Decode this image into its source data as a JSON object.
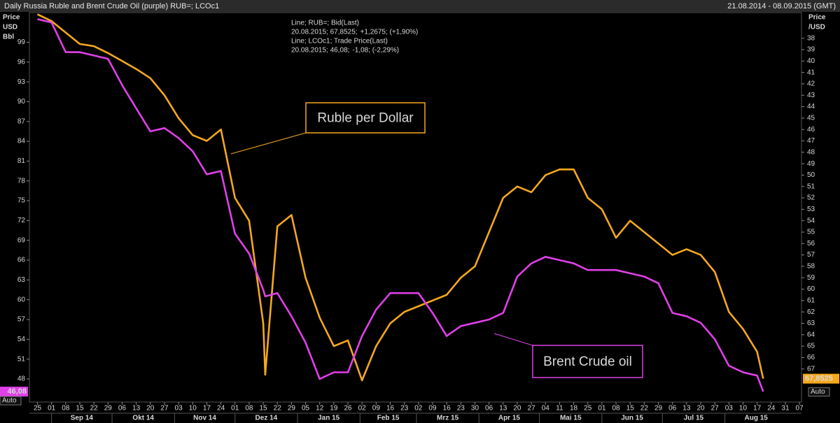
{
  "chart_data": {
    "type": "line",
    "title": "Daily Russia Ruble and Brent Crude Oil (purple) RUB=; LCOc1",
    "date_range": "21.08.2014 - 08.09.2015 (GMT)",
    "y_label": [
      "Price",
      "USD",
      "Bbl"
    ],
    "y2_label": [
      "Price",
      "/USD"
    ],
    "auto_button": "Auto",
    "x": [
      "2014-08-25",
      "2014-09-01",
      "2014-09-08",
      "2014-09-15",
      "2014-09-22",
      "2014-09-29",
      "2014-10-06",
      "2014-10-13",
      "2014-10-20",
      "2014-10-27",
      "2014-11-03",
      "2014-11-10",
      "2014-11-17",
      "2014-11-24",
      "2014-12-01",
      "2014-12-08",
      "2014-12-15",
      "2014-12-16",
      "2014-12-22",
      "2014-12-29",
      "2015-01-05",
      "2015-01-12",
      "2015-01-19",
      "2015-01-26",
      "2015-02-02",
      "2015-02-09",
      "2015-02-16",
      "2015-02-23",
      "2015-03-02",
      "2015-03-09",
      "2015-03-16",
      "2015-03-23",
      "2015-03-30",
      "2015-04-06",
      "2015-04-13",
      "2015-04-20",
      "2015-04-27",
      "2015-05-04",
      "2015-05-11",
      "2015-05-18",
      "2015-05-25",
      "2015-06-01",
      "2015-06-08",
      "2015-06-15",
      "2015-06-22",
      "2015-06-29",
      "2015-07-06",
      "2015-07-13",
      "2015-07-20",
      "2015-07-27",
      "2015-08-03",
      "2015-08-10",
      "2015-08-17",
      "2015-08-20"
    ],
    "series": [
      {
        "name": "Line; RUB=; Bid(Last)",
        "color": "#f5a81c",
        "axis": "y2",
        "status": [
          {
            "text": "20.08.2015; 67,8525;",
            "color": "#f5a81c"
          },
          {
            "text": "+1,2675; (+1,90%)",
            "color": "#3fd6e6"
          }
        ],
        "values": [
          35.9,
          36.5,
          37.5,
          38.5,
          38.7,
          39.3,
          40,
          40.7,
          41.5,
          43,
          45,
          46.5,
          47,
          46,
          52,
          54,
          63,
          67.5,
          54.5,
          53.5,
          59,
          62.5,
          65,
          64.5,
          68,
          65,
          63,
          62,
          61.5,
          61,
          60.5,
          59,
          58,
          55,
          52,
          51,
          51.5,
          50,
          49.5,
          49.5,
          52,
          53,
          55.5,
          54,
          55,
          56,
          57,
          56.5,
          57,
          58.5,
          62,
          63.5,
          65.5,
          67.8525
        ],
        "value_labels": [
          null,
          null,
          null,
          null,
          null,
          null,
          null,
          null,
          null,
          null,
          null,
          null,
          null,
          null,
          null,
          null,
          null,
          null,
          null,
          null,
          null,
          null,
          null,
          null,
          null,
          null,
          null,
          null,
          null,
          null,
          null,
          null,
          null,
          null,
          null,
          null,
          null,
          null,
          null,
          null,
          null,
          null,
          null,
          null,
          null,
          null,
          null,
          null,
          null,
          null,
          null,
          null,
          null,
          "67,8525"
        ]
      },
      {
        "name": "Line; LCOc1; Trade Price(Last)",
        "color": "#e040e8",
        "status": [
          {
            "text": "20.08.2015; 46,08;",
            "color": "#e040e8"
          },
          {
            "text": "-1,08; (-2,29%)",
            "color": "#ff3030"
          }
        ],
        "values": [
          102.5,
          102,
          97.5,
          97.5,
          97,
          96.5,
          92.5,
          89,
          85.5,
          86,
          84.5,
          82.5,
          79,
          79.5,
          70,
          67,
          61.5,
          60.5,
          61,
          57.5,
          53.5,
          48,
          49,
          49,
          54.5,
          58.5,
          61,
          61,
          61,
          58,
          54.5,
          56,
          56.5,
          57,
          58,
          63.5,
          65.5,
          66.5,
          66,
          65.5,
          64.5,
          64.5,
          64.5,
          64,
          63.5,
          62.5,
          58,
          57.5,
          56.5,
          54,
          50,
          49,
          48.5,
          46.08
        ],
        "value_labels": [
          null,
          null,
          null,
          null,
          null,
          null,
          null,
          null,
          null,
          null,
          null,
          null,
          null,
          null,
          null,
          null,
          null,
          null,
          null,
          null,
          null,
          null,
          null,
          null,
          null,
          null,
          null,
          null,
          null,
          null,
          null,
          null,
          null,
          null,
          null,
          null,
          null,
          null,
          null,
          null,
          null,
          null,
          null,
          null,
          null,
          null,
          null,
          null,
          null,
          null,
          null,
          null,
          null,
          "46,08"
        ]
      }
    ],
    "annotations": [
      {
        "text": "Ruble per Dollar",
        "series": 0
      },
      {
        "text": "Brent Crude oil",
        "series": 1
      }
    ],
    "xlim": [
      "2014-08-21",
      "2015-09-08"
    ],
    "ylim": [
      44.5,
      103.5
    ],
    "yticks": [
      48,
      51,
      54,
      57,
      60,
      63,
      66,
      69,
      72,
      75,
      78,
      81,
      84,
      87,
      90,
      93,
      96,
      99
    ],
    "y2lim": [
      69.9,
      35.75
    ],
    "y2ticks": [
      38,
      39,
      40,
      41,
      42,
      43,
      44,
      45,
      46,
      47,
      48,
      49,
      50,
      51,
      52,
      53,
      54,
      55,
      56,
      57,
      58,
      59,
      60,
      61,
      62,
      63,
      64,
      65,
      66,
      67
    ],
    "xticks": [
      {
        "value": "2014-08-25",
        "label": "25"
      },
      {
        "value": "2014-09-01",
        "label": "01"
      },
      {
        "value": "2014-09-08",
        "label": "08"
      },
      {
        "value": "2014-09-15",
        "label": "15"
      },
      {
        "value": "2014-09-22",
        "label": "22"
      },
      {
        "value": "2014-09-29",
        "label": "29"
      },
      {
        "value": "2014-10-06",
        "label": "06"
      },
      {
        "value": "2014-10-13",
        "label": "13"
      },
      {
        "value": "2014-10-20",
        "label": "20"
      },
      {
        "value": "2014-10-27",
        "label": "27"
      },
      {
        "value": "2014-11-03",
        "label": "03"
      },
      {
        "value": "2014-11-10",
        "label": "10"
      },
      {
        "value": "2014-11-17",
        "label": "17"
      },
      {
        "value": "2014-11-24",
        "label": "24"
      },
      {
        "value": "2014-12-01",
        "label": "01"
      },
      {
        "value": "2014-12-08",
        "label": "08"
      },
      {
        "value": "2014-12-15",
        "label": "15"
      },
      {
        "value": "2014-12-22",
        "label": "22"
      },
      {
        "value": "2014-12-29",
        "label": "29"
      },
      {
        "value": "2015-01-05",
        "label": "05"
      },
      {
        "value": "2015-01-12",
        "label": "12"
      },
      {
        "value": "2015-01-19",
        "label": "19"
      },
      {
        "value": "2015-01-26",
        "label": "26"
      },
      {
        "value": "2015-02-02",
        "label": "02"
      },
      {
        "value": "2015-02-09",
        "label": "09"
      },
      {
        "value": "2015-02-16",
        "label": "16"
      },
      {
        "value": "2015-02-23",
        "label": "23"
      },
      {
        "value": "2015-03-02",
        "label": "02"
      },
      {
        "value": "2015-03-09",
        "label": "09"
      },
      {
        "value": "2015-03-16",
        "label": "16"
      },
      {
        "value": "2015-03-23",
        "label": "23"
      },
      {
        "value": "2015-03-30",
        "label": "30"
      },
      {
        "value": "2015-04-06",
        "label": "06"
      },
      {
        "value": "2015-04-13",
        "label": "13"
      },
      {
        "value": "2015-04-20",
        "label": "20"
      },
      {
        "value": "2015-04-27",
        "label": "27"
      },
      {
        "value": "2015-05-04",
        "label": "04"
      },
      {
        "value": "2015-05-11",
        "label": "11"
      },
      {
        "value": "2015-05-18",
        "label": "18"
      },
      {
        "value": "2015-05-25",
        "label": "25"
      },
      {
        "value": "2015-06-01",
        "label": "01"
      },
      {
        "value": "2015-06-08",
        "label": "08"
      },
      {
        "value": "2015-06-15",
        "label": "15"
      },
      {
        "value": "2015-06-22",
        "label": "22"
      },
      {
        "value": "2015-06-29",
        "label": "29"
      },
      {
        "value": "2015-07-06",
        "label": "06"
      },
      {
        "value": "2015-07-13",
        "label": "13"
      },
      {
        "value": "2015-07-20",
        "label": "20"
      },
      {
        "value": "2015-07-27",
        "label": "27"
      },
      {
        "value": "2015-08-03",
        "label": "03"
      },
      {
        "value": "2015-08-10",
        "label": "10"
      },
      {
        "value": "2015-08-17",
        "label": "17"
      },
      {
        "value": "2015-08-24",
        "label": "24"
      },
      {
        "value": "2015-08-31",
        "label": "31"
      },
      {
        "value": "2015-09-07",
        "label": "07"
      }
    ],
    "x_groups": [
      {
        "label": "Sep 14",
        "start": "2014-09-01",
        "end": "2014-10-01"
      },
      {
        "label": "Okt 14",
        "start": "2014-10-01",
        "end": "2014-11-01"
      },
      {
        "label": "Nov 14",
        "start": "2014-11-01",
        "end": "2014-12-01"
      },
      {
        "label": "Dez 14",
        "start": "2014-12-01",
        "end": "2015-01-01"
      },
      {
        "label": "Jan 15",
        "start": "2015-01-01",
        "end": "2015-02-01"
      },
      {
        "label": "Feb 15",
        "start": "2015-02-01",
        "end": "2015-03-01"
      },
      {
        "label": "Mrz 15",
        "start": "2015-03-01",
        "end": "2015-04-01"
      },
      {
        "label": "Apr 15",
        "start": "2015-04-01",
        "end": "2015-05-01"
      },
      {
        "label": "Mai 15",
        "start": "2015-05-01",
        "end": "2015-06-01"
      },
      {
        "label": "Jun 15",
        "start": "2015-06-01",
        "end": "2015-07-01"
      },
      {
        "label": "Jul 15",
        "start": "2015-07-01",
        "end": "2015-08-01"
      },
      {
        "label": "Aug 15",
        "start": "2015-08-01",
        "end": "2015-09-01"
      }
    ]
  }
}
